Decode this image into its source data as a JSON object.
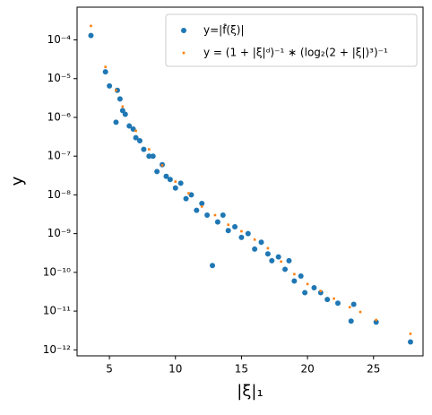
{
  "chart_data": {
    "type": "scatter",
    "xlabel": "|ξ|₁",
    "ylabel": "y",
    "yscale": "log",
    "legend": "upper right",
    "xlim": [
      2.55,
      28.75
    ],
    "xticks": [
      5,
      10,
      15,
      20,
      25
    ],
    "ylim": [
      7e-13,
      0.0007
    ],
    "yticks": [
      {
        "value": 1e-12,
        "label": "10⁻¹²"
      },
      {
        "value": 1e-11,
        "label": "10⁻¹¹"
      },
      {
        "value": 1e-10,
        "label": "10⁻¹⁰"
      },
      {
        "value": 1e-09,
        "label": "10⁻⁹"
      },
      {
        "value": 1e-08,
        "label": "10⁻⁸"
      },
      {
        "value": 1e-07,
        "label": "10⁻⁷"
      },
      {
        "value": 1e-06,
        "label": "10⁻⁶"
      },
      {
        "value": 1e-05,
        "label": "10⁻⁵"
      },
      {
        "value": 0.0001,
        "label": "10⁻⁴"
      }
    ],
    "series": [
      {
        "name": "y=|f̂(ξ)|",
        "color": "#1f77b4",
        "x": [
          3.6,
          4.7,
          5.0,
          5.5,
          5.6,
          5.8,
          6.0,
          6.2,
          6.5,
          6.8,
          7.0,
          7.3,
          7.6,
          8.0,
          8.3,
          8.6,
          9.0,
          9.3,
          9.6,
          10.0,
          10.4,
          10.8,
          11.2,
          11.6,
          12.0,
          12.4,
          12.8,
          13.2,
          13.6,
          14.0,
          14.5,
          15.0,
          15.5,
          16.0,
          16.5,
          17.0,
          17.3,
          17.8,
          18.3,
          18.6,
          19.0,
          19.5,
          19.8,
          20.5,
          21.0,
          21.5,
          22.3,
          23.3,
          23.5,
          25.2,
          27.8
        ],
        "values": [
          0.00013,
          1.5e-05,
          6.5e-06,
          7.5e-07,
          5e-06,
          3e-06,
          1.5e-06,
          1.2e-06,
          6e-07,
          5e-07,
          3e-07,
          2.5e-07,
          1.5e-07,
          1e-07,
          1e-07,
          4e-08,
          6e-08,
          3e-08,
          2.5e-08,
          1.5e-08,
          2e-08,
          8e-09,
          1e-08,
          4e-09,
          6e-09,
          3e-09,
          1.5e-10,
          2e-09,
          3e-09,
          1.2e-09,
          1.5e-09,
          8e-10,
          1e-09,
          4e-10,
          6e-10,
          3e-10,
          2e-10,
          2.5e-10,
          1.2e-10,
          2e-10,
          6e-11,
          8e-11,
          3e-11,
          4e-11,
          3e-11,
          2e-11,
          1.6e-11,
          5.5e-12,
          1.5e-11,
          5.2e-12,
          1.6e-12
        ]
      },
      {
        "name": "y = (1 + |ξ|ᵈ)⁻¹ ∗ (log₂(2 + |ξ|)³)⁻¹",
        "color": "#ff7f0e",
        "x": [
          3.6,
          4.7,
          5.5,
          6,
          7,
          8,
          9,
          10,
          11,
          12,
          13,
          14,
          15,
          16,
          17,
          18,
          19,
          20,
          21,
          22,
          23.2,
          24,
          25.2,
          27.8
        ],
        "values": [
          0.00023,
          2e-05,
          5e-06,
          1.9e-06,
          4.5e-07,
          1.5e-07,
          5.8e-08,
          2.2e-08,
          1.1e-08,
          5e-09,
          3e-09,
          1.7e-09,
          1.15e-09,
          7e-10,
          4.2e-10,
          1.9e-10,
          9e-11,
          5e-11,
          3.3e-11,
          2.1e-11,
          1.26e-11,
          9.5e-12,
          5.9e-12,
          2.6e-12
        ]
      }
    ]
  }
}
